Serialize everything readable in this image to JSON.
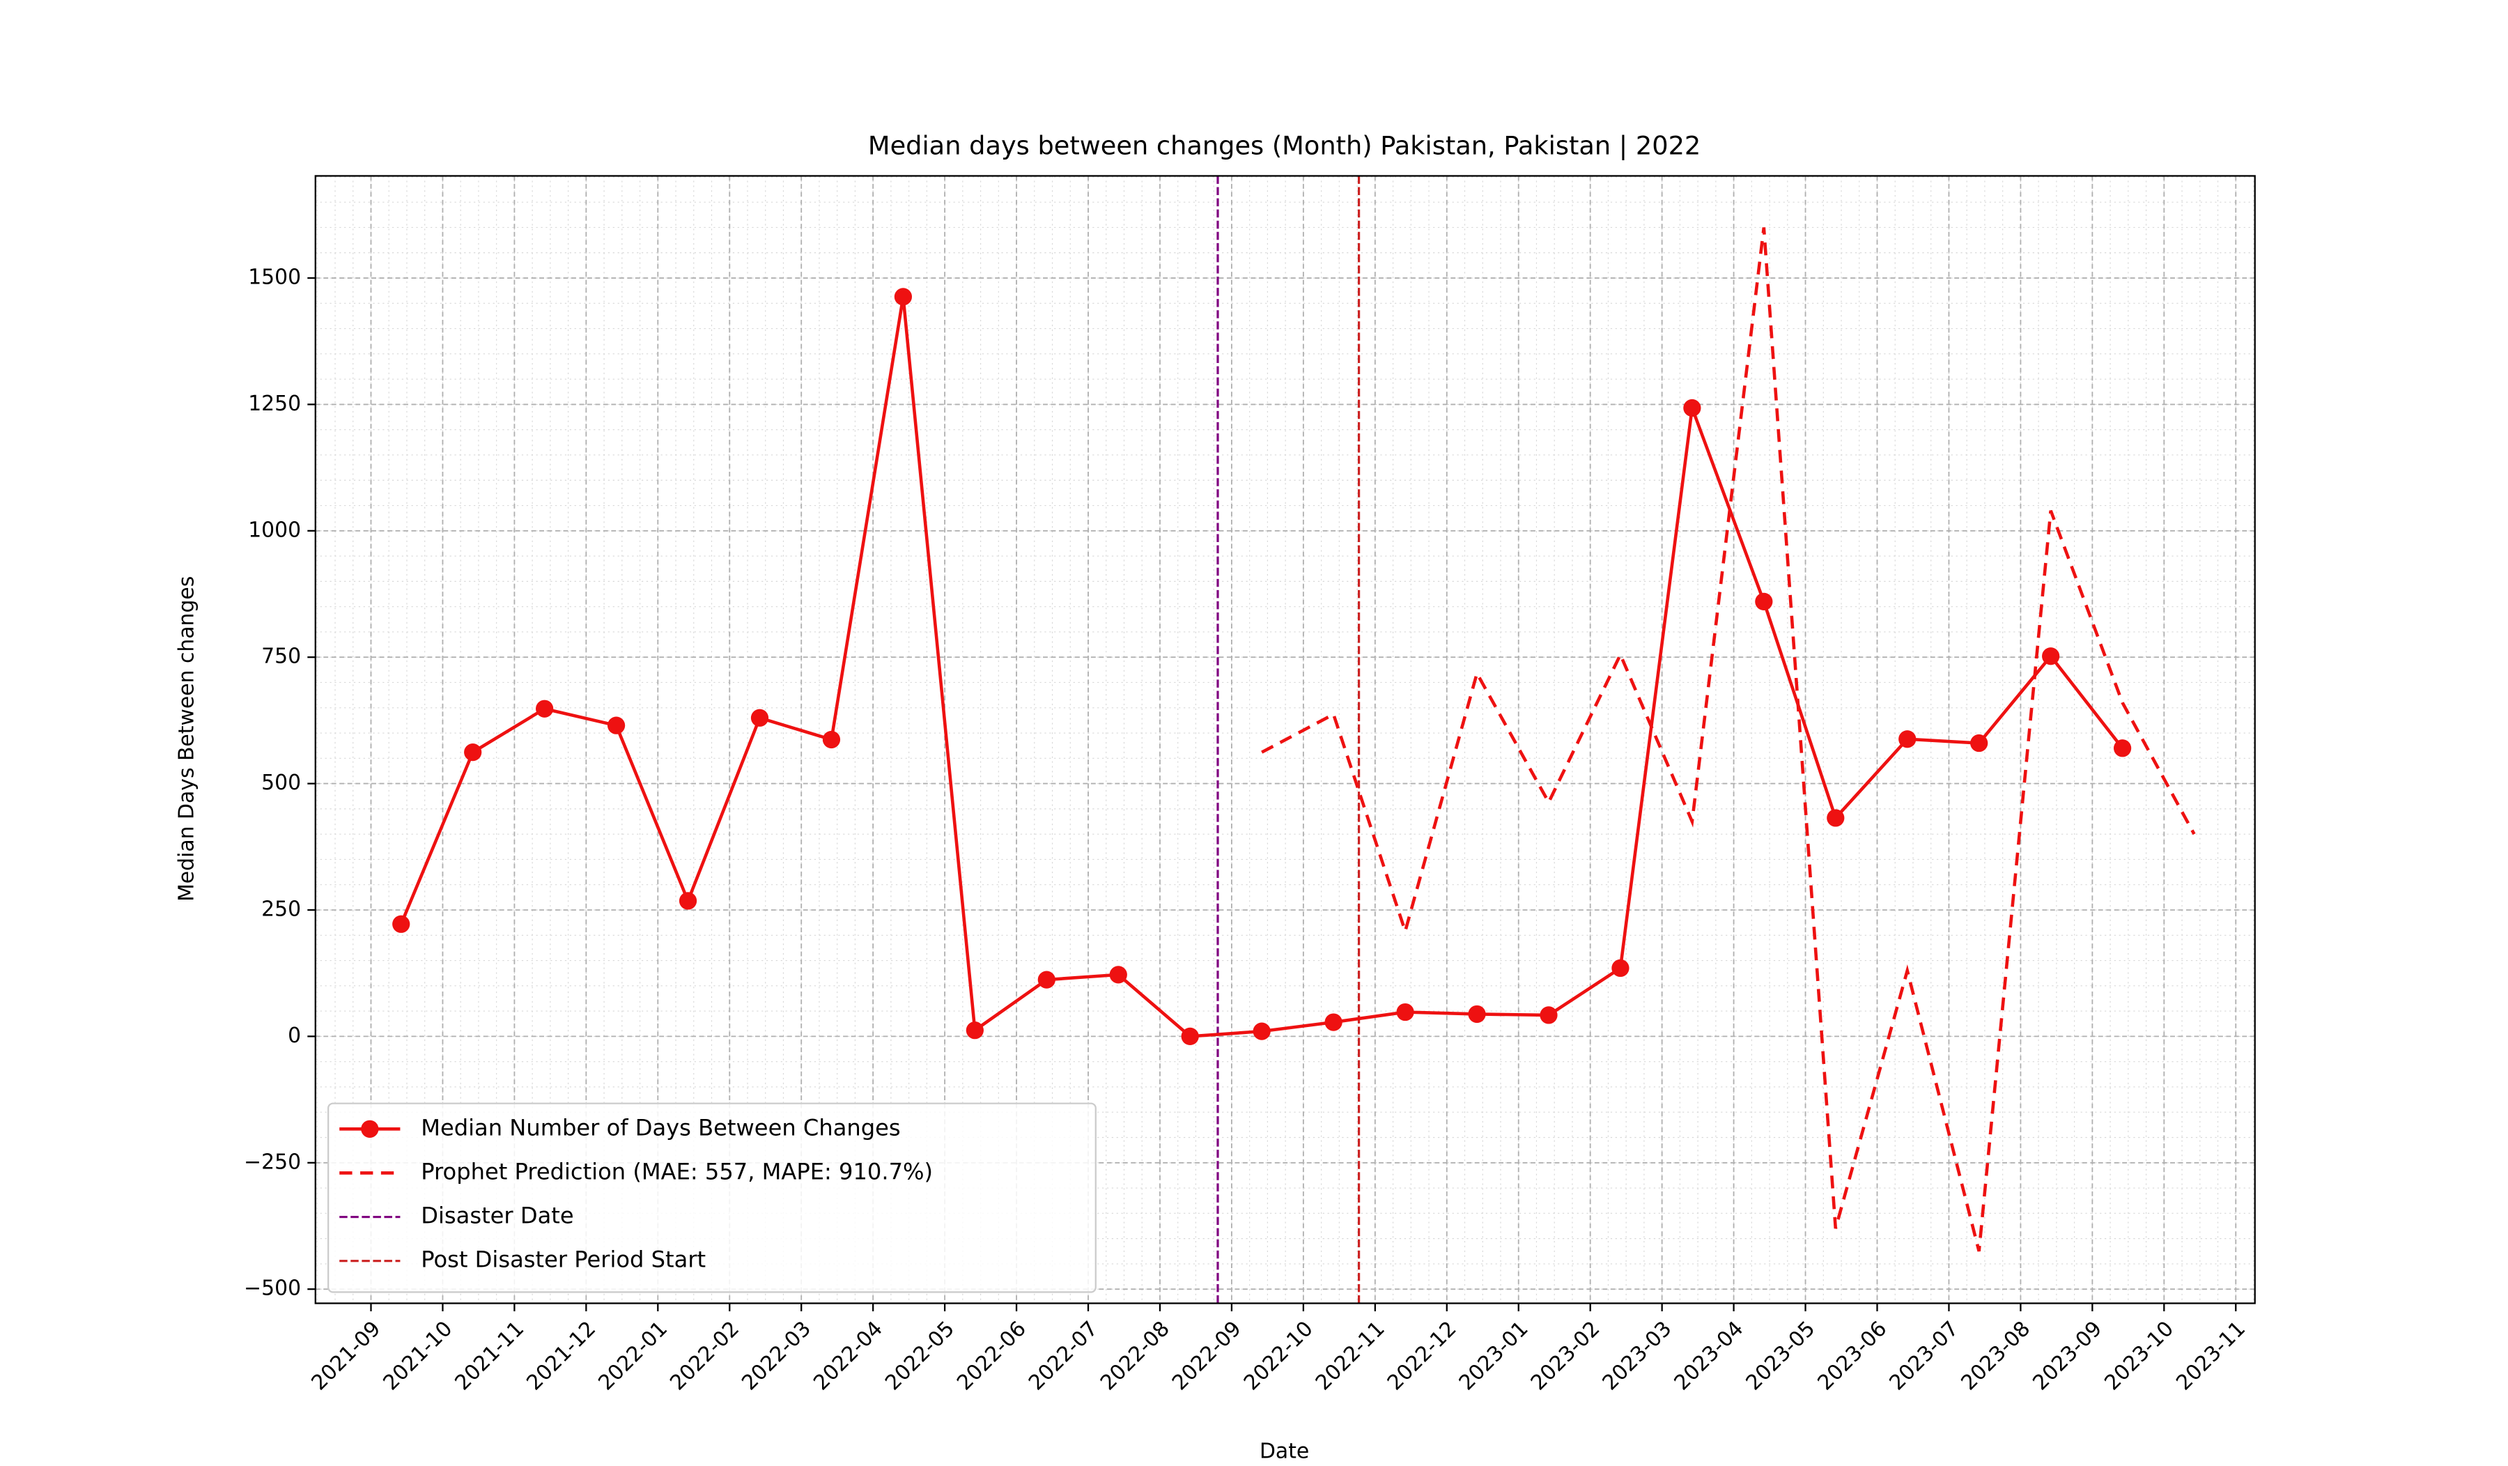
{
  "chart_data": {
    "type": "line",
    "title": "Median days between changes (Month) Pakistan, Pakistan | 2022",
    "xlabel": "Date",
    "ylabel": "Median Days Between changes",
    "x": [
      "2021-09",
      "2021-10",
      "2021-11",
      "2021-12",
      "2022-01",
      "2022-02",
      "2022-03",
      "2022-04",
      "2022-05",
      "2022-06",
      "2022-07",
      "2022-08",
      "2022-09",
      "2022-10",
      "2022-11",
      "2022-12",
      "2023-01",
      "2023-02",
      "2023-03",
      "2023-04",
      "2023-05",
      "2023-06",
      "2023-07",
      "2023-08",
      "2023-09",
      "2023-10"
    ],
    "series": [
      {
        "name": "Median Number of Days Between Changes",
        "color": "#ee1111",
        "style": "solid",
        "marker": true,
        "values": [
          222,
          562,
          648,
          615,
          268,
          630,
          587,
          1463,
          12,
          112,
          122,
          0,
          10,
          28,
          48,
          44,
          42,
          135,
          1243,
          860,
          432,
          588,
          580,
          752,
          570,
          null
        ]
      },
      {
        "name": "Prophet Prediction (MAE: 557, MAPE: 910.7%)",
        "color": "#ee1111",
        "style": "dashed",
        "marker": false,
        "values": [
          null,
          null,
          null,
          null,
          null,
          null,
          null,
          null,
          null,
          null,
          null,
          null,
          562,
          637,
          208,
          718,
          463,
          755,
          425,
          1600,
          -380,
          130,
          -425,
          1040,
          660,
          400
        ]
      }
    ],
    "vlines": [
      {
        "name": "Disaster Date",
        "x": "2022-08-26",
        "color": "#800080"
      },
      {
        "name": "Post Disaster Period Start",
        "x": "2022-10-25",
        "color": "#cc2222"
      }
    ],
    "xlim": [
      "2021-08-08",
      "2023-11-09"
    ],
    "xticks": [
      "2021-09",
      "2021-10",
      "2021-11",
      "2021-12",
      "2022-01",
      "2022-02",
      "2022-03",
      "2022-04",
      "2022-05",
      "2022-06",
      "2022-07",
      "2022-08",
      "2022-09",
      "2022-10",
      "2022-11",
      "2022-12",
      "2023-01",
      "2023-02",
      "2023-03",
      "2023-04",
      "2023-05",
      "2023-06",
      "2023-07",
      "2023-08",
      "2023-09",
      "2023-10",
      "2023-11"
    ],
    "ylim": [
      -528,
      1702
    ],
    "yticks": [
      {
        "value": -500,
        "label": "−500"
      },
      {
        "value": -250,
        "label": "−250"
      },
      0,
      250,
      500,
      750,
      1000,
      1250,
      1500
    ],
    "grid": true,
    "legend": "lower left"
  }
}
